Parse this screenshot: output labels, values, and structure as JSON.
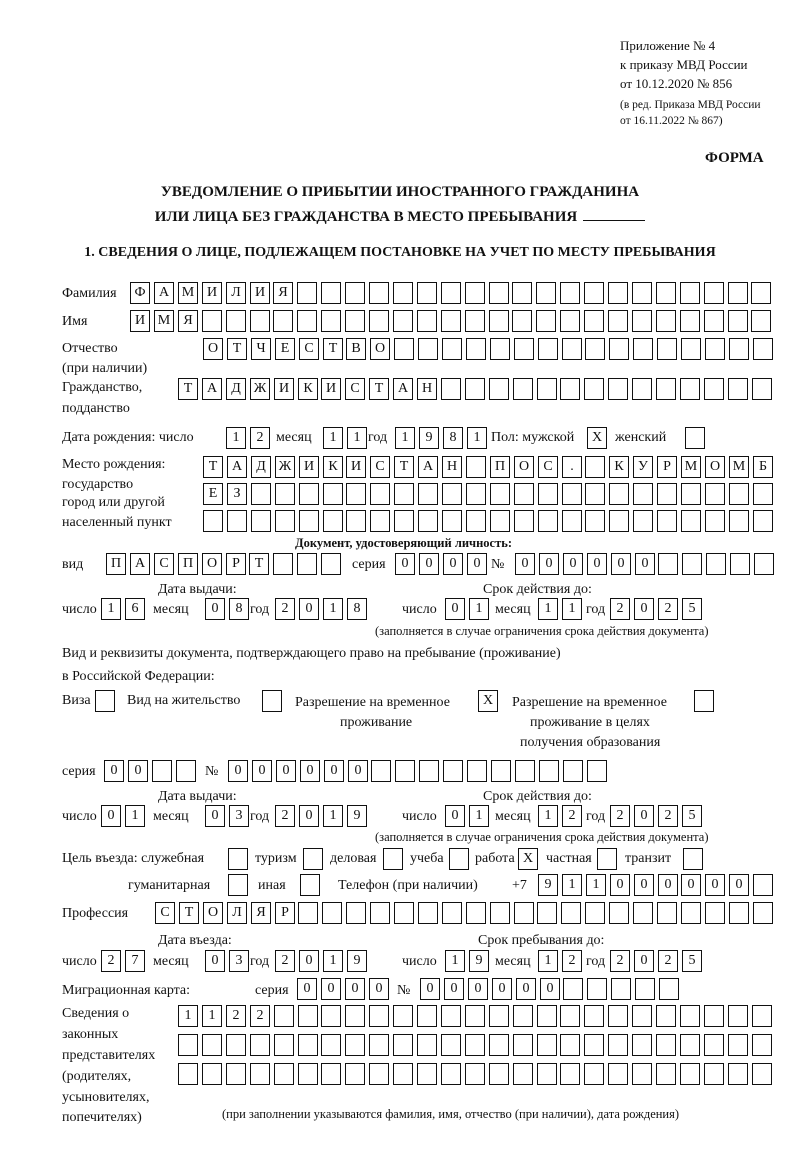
{
  "header": {
    "line1": "Приложение № 4",
    "line2": "к приказу МВД России",
    "line3": "от 10.12.2020 № 856",
    "line4": "(в ред. Приказа МВД России",
    "line5": "от 16.11.2022 № 867)",
    "form_label": "ФОРМА",
    "title1": "УВЕДОМЛЕНИЕ О ПРИБЫТИИ ИНОСТРАННОГО ГРАЖДАНИНА",
    "title2": "ИЛИ ЛИЦА БЕЗ ГРАЖДАНСТВА В МЕСТО ПРЕБЫВАНИЯ",
    "section1": "1. СВЕДЕНИЯ О ЛИЦЕ, ПОДЛЕЖАЩЕМ ПОСТАНОВКЕ НА УЧЕТ ПО МЕСТУ ПРЕБЫВАНИЯ"
  },
  "labels": {
    "surname": "Фамилия",
    "name": "Имя",
    "patronymic": "Отчество",
    "patronymic2": "(при наличии)",
    "citizenship": "Гражданство,",
    "citizenship2": "подданство",
    "birth_date": "Дата рождения:  число",
    "month": "месяц",
    "year": "год",
    "day": "число",
    "sex": "Пол: мужской",
    "female": "женский",
    "birth_place1": "Место рождения:",
    "birth_place2": "государство",
    "birth_place3": "город или другой",
    "birth_place4": "населенный пункт",
    "id_doc": "Документ, удостоверяющий личность:",
    "kind": "вид",
    "series": "серия",
    "number": "№",
    "issue_date": "Дата выдачи:",
    "valid_until": "Срок действия до:",
    "valid_note": "(заполняется в случае ограничения срока действия документа)",
    "right_doc1": "Вид и реквизиты документа, подтверждающего право на пребывание (проживание)",
    "right_doc2": "в Российской Федерации:",
    "visa": "Виза",
    "residence": "Вид на жительство",
    "trp1": "Разрешение на временное",
    "trp2": "проживание",
    "trp_edu1": "Разрешение на временное",
    "trp_edu2": "проживание в целях",
    "trp_edu3": "получения образования",
    "purpose": "Цель въезда: служебная",
    "tourism": "туризм",
    "business": "деловая",
    "study": "учеба",
    "work": "работа",
    "private": "частная",
    "transit": "транзит",
    "humanitarian": "гуманитарная",
    "other": "иная",
    "phone": "Телефон (при наличии)",
    "phone_prefix": "+7",
    "profession": "Профессия",
    "entry_date": "Дата въезда:",
    "stay_until": "Срок пребывания до:",
    "migration_card": "Миграционная карта:",
    "rep1": "Сведения о",
    "rep2": "законных",
    "rep3": "представителях",
    "rep4": "(родителях,",
    "rep5": "усыновителях,",
    "rep6": "попечителях)",
    "rep_note": "(при заполнении указываются фамилия, имя, отчество (при наличии), дата рождения)"
  },
  "fields": {
    "surname": "ФАМИЛИЯ",
    "name": "ИМЯ",
    "patronymic": "ОТЧЕСТВО",
    "citizenship": "ТАДЖИКИСТАН",
    "birth_day": "12",
    "birth_month": "11",
    "birth_year": "1981",
    "sex_male": "X",
    "sex_female": "",
    "birth_place_1": "ТАДЖИКИСТАН ПОС. КУРМОМБ",
    "birth_place_2": "ЕЗ",
    "birth_place_3": "",
    "id_kind": "ПАСПОРТ",
    "id_series": "0000",
    "id_number": "000000",
    "id_issue_day": "16",
    "id_issue_month": "08",
    "id_issue_year": "2018",
    "id_valid_day": "01",
    "id_valid_month": "11",
    "id_valid_year": "2025",
    "visa": "",
    "residence": "",
    "trp": "X",
    "trp_edu": "",
    "rd_series": "00",
    "rd_number": "000000",
    "rd_issue_day": "01",
    "rd_issue_month": "03",
    "rd_issue_year": "2019",
    "rd_valid_day": "01",
    "rd_valid_month": "12",
    "rd_valid_year": "2025",
    "p_service": "",
    "p_tourism": "",
    "p_business": "",
    "p_study": "",
    "p_work": "X",
    "p_private": "",
    "p_transit": "",
    "p_humanitarian": "",
    "p_other": "",
    "phone": "911000000",
    "profession": "СТОЛЯР",
    "entry_day": "27",
    "entry_month": "03",
    "entry_year": "2019",
    "stay_day": "19",
    "stay_month": "12",
    "stay_year": "2025",
    "mc_series": "0000",
    "mc_number": "000000",
    "rep_1": "1122",
    "rep_2": "",
    "rep_3": ""
  }
}
